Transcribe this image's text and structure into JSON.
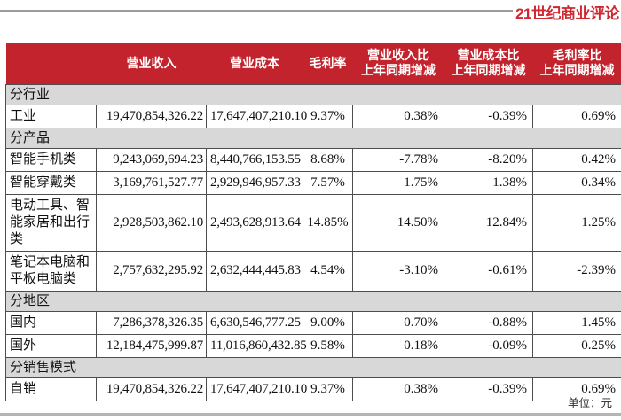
{
  "logo": "21世纪商业评论",
  "unit_note": "单位：元",
  "colors": {
    "header_red": "#c2232d",
    "logo_red": "#d02730",
    "section_gray": "#d8d8d8",
    "grid_border": "#4d4d4d",
    "rule_gray": "#9b9b9b"
  },
  "table": {
    "headers": [
      "",
      "营业收入",
      "营业成本",
      "毛利率",
      "营业收入比\n上年同期增减",
      "营业成本比\n上年同期增减",
      "毛利率比\n上年同期增减"
    ],
    "sections": [
      {
        "title": "分行业",
        "rows": [
          {
            "label": "工业",
            "values": [
              "19,470,854,326.22",
              "17,647,407,210.10",
              "9.37%",
              "0.38%",
              "-0.39%",
              "0.69%"
            ]
          }
        ]
      },
      {
        "title": "分产品",
        "rows": [
          {
            "label": "智能手机类",
            "values": [
              "9,243,069,694.23",
              "8,440,766,153.55",
              "8.68%",
              "-7.78%",
              "-8.20%",
              "0.42%"
            ]
          },
          {
            "label": "智能穿戴类",
            "values": [
              "3,169,761,527.77",
              "2,929,946,957.33",
              "7.57%",
              "1.75%",
              "1.38%",
              "0.34%"
            ]
          },
          {
            "label": "电动工具、智能家居和出行类",
            "values": [
              "2,928,503,862.10",
              "2,493,628,913.64",
              "14.85%",
              "14.50%",
              "12.84%",
              "1.25%"
            ]
          },
          {
            "label": "笔记本电脑和平板电脑类",
            "values": [
              "2,757,632,295.92",
              "2,632,444,445.83",
              "4.54%",
              "-3.10%",
              "-0.61%",
              "-2.39%"
            ]
          }
        ]
      },
      {
        "title": "分地区",
        "rows": [
          {
            "label": "国内",
            "values": [
              "7,286,378,326.35",
              "6,630,546,777.25",
              "9.00%",
              "0.70%",
              "-0.88%",
              "1.45%"
            ]
          },
          {
            "label": "国外",
            "values": [
              "12,184,475,999.87",
              "11,016,860,432.85",
              "9.58%",
              "0.18%",
              "-0.09%",
              "0.25%"
            ]
          }
        ]
      },
      {
        "title": "分销售模式",
        "rows": [
          {
            "label": "自销",
            "values": [
              "19,470,854,326.22",
              "17,647,407,210.10",
              "9.37%",
              "0.38%",
              "-0.39%",
              "0.69%"
            ]
          }
        ]
      }
    ]
  }
}
